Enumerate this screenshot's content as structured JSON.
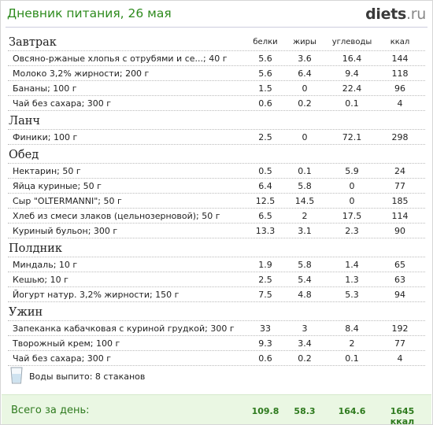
{
  "header": {
    "title": "Дневник питания, 26 мая",
    "logo_main": "diets",
    "logo_suffix": ".ru"
  },
  "columns": {
    "protein": "белки",
    "fat": "жиры",
    "carbs": "углеводы",
    "kcal": "ккал"
  },
  "meals": [
    {
      "title": "Завтрак",
      "items": [
        {
          "name": "Овсяно-ржаные хлопья с отрубями и се...; 40 г",
          "protein": "5.6",
          "fat": "3.6",
          "carbs": "16.4",
          "kcal": "144"
        },
        {
          "name": "Молоко 3,2% жирности; 200 г",
          "protein": "5.6",
          "fat": "6.4",
          "carbs": "9.4",
          "kcal": "118"
        },
        {
          "name": "Бананы; 100 г",
          "protein": "1.5",
          "fat": "0",
          "carbs": "22.4",
          "kcal": "96"
        },
        {
          "name": "Чай без сахара; 300 г",
          "protein": "0.6",
          "fat": "0.2",
          "carbs": "0.1",
          "kcal": "4"
        }
      ]
    },
    {
      "title": "Ланч",
      "items": [
        {
          "name": "Финики; 100 г",
          "protein": "2.5",
          "fat": "0",
          "carbs": "72.1",
          "kcal": "298"
        }
      ]
    },
    {
      "title": "Обед",
      "items": [
        {
          "name": "Нектарин; 50 г",
          "protein": "0.5",
          "fat": "0.1",
          "carbs": "5.9",
          "kcal": "24"
        },
        {
          "name": "Яйца куриные; 50 г",
          "protein": "6.4",
          "fat": "5.8",
          "carbs": "0",
          "kcal": "77"
        },
        {
          "name": "Сыр \"OLTERMANNI\"; 50 г",
          "protein": "12.5",
          "fat": "14.5",
          "carbs": "0",
          "kcal": "185"
        },
        {
          "name": "Хлеб из смеси злаков (цельнозерновой); 50 г",
          "protein": "6.5",
          "fat": "2",
          "carbs": "17.5",
          "kcal": "114"
        },
        {
          "name": "Куриный бульон; 300 г",
          "protein": "13.3",
          "fat": "3.1",
          "carbs": "2.3",
          "kcal": "90"
        }
      ]
    },
    {
      "title": "Полдник",
      "items": [
        {
          "name": "Миндаль; 10 г",
          "protein": "1.9",
          "fat": "5.8",
          "carbs": "1.4",
          "kcal": "65"
        },
        {
          "name": "Кешью; 10 г",
          "protein": "2.5",
          "fat": "5.4",
          "carbs": "1.3",
          "kcal": "63"
        },
        {
          "name": "Йогурт натур. 3,2% жирности; 150 г",
          "protein": "7.5",
          "fat": "4.8",
          "carbs": "5.3",
          "kcal": "94"
        }
      ]
    },
    {
      "title": "Ужин",
      "items": [
        {
          "name": "Запеканка кабачковая с куриной грудкой; 300 г",
          "protein": "33",
          "fat": "3",
          "carbs": "8.4",
          "kcal": "192"
        },
        {
          "name": "Творожный крем; 100 г",
          "protein": "9.3",
          "fat": "3.4",
          "carbs": "2",
          "kcal": "77"
        },
        {
          "name": "Чай без сахара; 300 г",
          "protein": "0.6",
          "fat": "0.2",
          "carbs": "0.1",
          "kcal": "4"
        }
      ]
    }
  ],
  "water": {
    "icon": "water-glass-icon",
    "label": "Воды выпито: 8 стаканов"
  },
  "total": {
    "label": "Всего за день:",
    "protein": "109.8",
    "fat": "58.3",
    "carbs": "164.6",
    "kcal": "1645 ккал"
  },
  "colors": {
    "title_green": "#2e8b1e",
    "total_bg": "#eaf7e3",
    "total_text": "#2e7a1e"
  }
}
